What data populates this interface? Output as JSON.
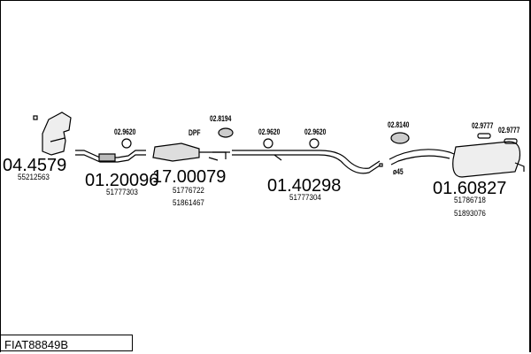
{
  "title": "FIAT88849B",
  "parts": [
    {
      "code": "04.4579",
      "oe": [
        "55212563"
      ]
    },
    {
      "code": "01.20096",
      "oe": [
        "51777303"
      ]
    },
    {
      "code": "17.00079",
      "oe": [
        "51776722",
        "51861467"
      ]
    },
    {
      "code": "01.40298",
      "oe": [
        "51777304"
      ]
    },
    {
      "code": "01.60827",
      "oe": [
        "51786718",
        "51893076"
      ]
    }
  ],
  "accessories": [
    "02.9620",
    "DPF",
    "02.8194",
    "02.9620",
    "02.9620",
    "02.8140",
    "02.9777",
    "02.9777",
    "ø45"
  ]
}
